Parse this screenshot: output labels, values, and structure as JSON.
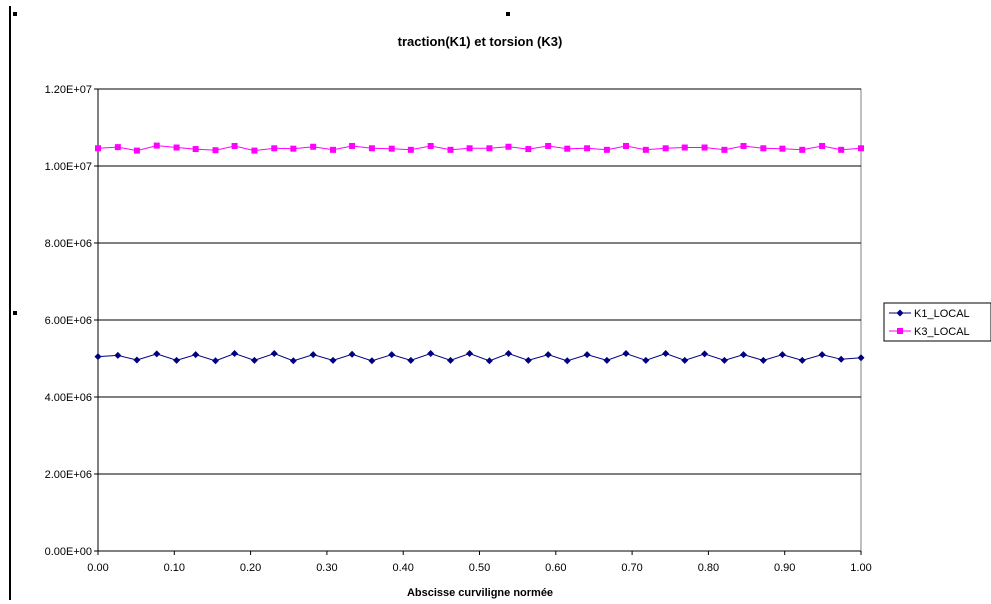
{
  "chart_data": {
    "type": "line",
    "title": "traction(K1) et torsion (K3)",
    "xlabel": "Abscisse curviligne normée",
    "ylabel": "",
    "xlim": [
      0,
      1
    ],
    "ylim": [
      0,
      12000000
    ],
    "x_ticks": [
      "0.00",
      "0.10",
      "0.20",
      "0.30",
      "0.40",
      "0.50",
      "0.60",
      "0.70",
      "0.80",
      "0.90",
      "1.00"
    ],
    "y_ticks": [
      "0.00E+00",
      "2.00E+06",
      "4.00E+06",
      "6.00E+06",
      "8.00E+06",
      "1.00E+07",
      "1.20E+07"
    ],
    "grid": true,
    "legend_position": "right",
    "x": [
      0.0,
      0.026,
      0.051,
      0.077,
      0.103,
      0.128,
      0.154,
      0.179,
      0.205,
      0.231,
      0.256,
      0.282,
      0.308,
      0.333,
      0.359,
      0.385,
      0.41,
      0.436,
      0.462,
      0.487,
      0.513,
      0.538,
      0.564,
      0.59,
      0.615,
      0.641,
      0.667,
      0.692,
      0.718,
      0.744,
      0.769,
      0.795,
      0.821,
      0.846,
      0.872,
      0.897,
      0.923,
      0.949,
      0.974,
      1.0
    ],
    "series": [
      {
        "name": "K1_LOCAL",
        "color": "#000080",
        "marker": "diamond",
        "values": [
          5050000,
          5080000,
          4960000,
          5120000,
          4950000,
          5100000,
          4940000,
          5130000,
          4950000,
          5130000,
          4940000,
          5100000,
          4950000,
          5110000,
          4940000,
          5100000,
          4950000,
          5130000,
          4950000,
          5130000,
          4940000,
          5130000,
          4950000,
          5100000,
          4940000,
          5100000,
          4950000,
          5130000,
          4950000,
          5130000,
          4950000,
          5120000,
          4950000,
          5100000,
          4950000,
          5100000,
          4950000,
          5100000,
          4980000,
          5020000
        ]
      },
      {
        "name": "K3_LOCAL",
        "color": "#ff00ff",
        "marker": "square",
        "values": [
          10460000,
          10490000,
          10400000,
          10530000,
          10480000,
          10440000,
          10410000,
          10520000,
          10400000,
          10460000,
          10450000,
          10500000,
          10420000,
          10520000,
          10460000,
          10450000,
          10420000,
          10520000,
          10420000,
          10460000,
          10460000,
          10500000,
          10440000,
          10520000,
          10450000,
          10460000,
          10420000,
          10520000,
          10420000,
          10460000,
          10480000,
          10480000,
          10420000,
          10520000,
          10460000,
          10450000,
          10420000,
          10520000,
          10420000,
          10460000
        ]
      }
    ]
  }
}
